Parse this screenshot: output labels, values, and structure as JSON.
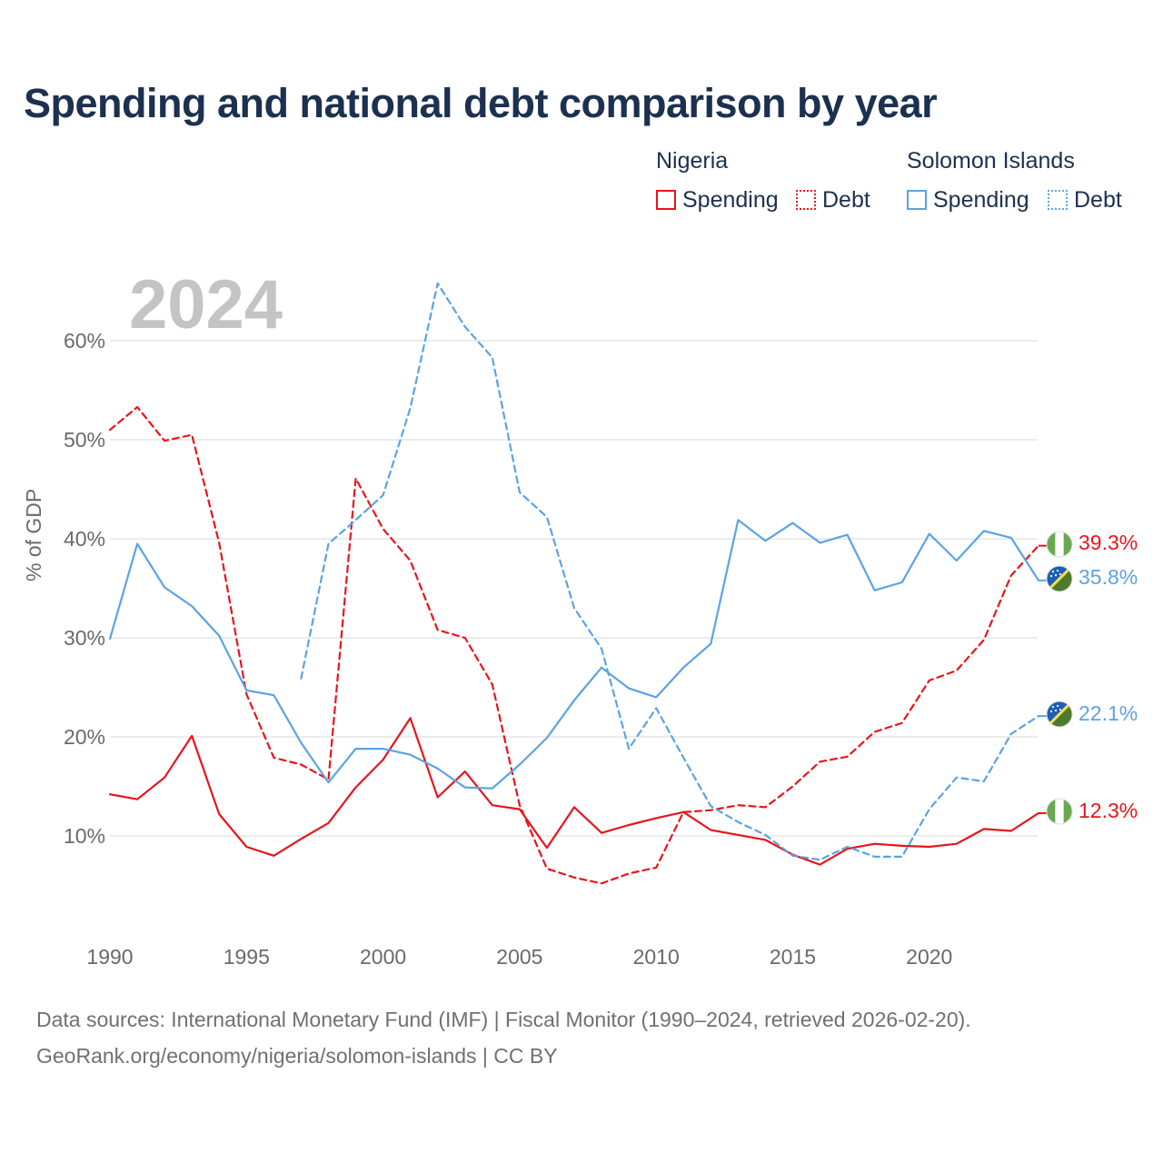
{
  "title": "Spending and national debt comparison by year",
  "legend": {
    "groups": [
      {
        "name": "Nigeria",
        "spending_label": "Spending",
        "debt_label": "Debt",
        "color": "#e8141b"
      },
      {
        "name": "Solomon Islands",
        "spending_label": "Spending",
        "debt_label": "Debt",
        "color": "#5ba3e4"
      }
    ]
  },
  "year_watermark": "2024",
  "footer": {
    "line1": "Data sources: International Monetary Fund (IMF) | Fiscal Monitor (1990–2024, retrieved 2026-02-20).",
    "line2": "GeoRank.org/economy/nigeria/solomon-islands | CC BY"
  },
  "end_labels": {
    "nigeria_debt": "39.3%",
    "solomon_spending": "35.8%",
    "solomon_debt": "22.1%",
    "nigeria_spending": "12.3%"
  },
  "flag_icons": {
    "nigeria": {
      "name": "nigeria-flag-icon",
      "colors": [
        "#6aa84f",
        "#ffffff"
      ]
    },
    "solomon": {
      "name": "solomon-islands-flag-icon",
      "colors": [
        "#1f5fb5",
        "#4d7a2f",
        "#f4e04d"
      ]
    }
  },
  "chart_data": {
    "type": "line",
    "title": "Spending and national debt comparison by year",
    "xlabel": "",
    "ylabel": "% of GDP",
    "xlim": [
      1990,
      2024
    ],
    "ylim": [
      0,
      65
    ],
    "yticks": [
      10,
      20,
      30,
      40,
      50,
      60
    ],
    "ytick_labels": [
      "10%",
      "20%",
      "30%",
      "40%",
      "50%",
      "60%"
    ],
    "xticks": [
      1990,
      1995,
      2000,
      2005,
      2010,
      2015,
      2020
    ],
    "xtick_labels": [
      "1990",
      "1995",
      "2000",
      "2005",
      "2010",
      "2015",
      "2020"
    ],
    "grid": "horizontal",
    "series": [
      {
        "name": "Nigeria Spending",
        "country": "Nigeria",
        "measure": "Spending",
        "style": "solid",
        "color": "#e8141b",
        "x": [
          1990,
          1991,
          1992,
          1993,
          1994,
          1995,
          1996,
          1997,
          1998,
          1999,
          2000,
          2001,
          2002,
          2003,
          2004,
          2005,
          2006,
          2007,
          2008,
          2009,
          2010,
          2011,
          2012,
          2013,
          2014,
          2015,
          2016,
          2017,
          2018,
          2019,
          2020,
          2021,
          2022,
          2023,
          2024
        ],
        "values": [
          14.2,
          13.7,
          15.9,
          20.1,
          12.2,
          8.9,
          8.0,
          9.7,
          11.3,
          14.9,
          17.7,
          21.9,
          13.9,
          16.5,
          13.1,
          12.7,
          8.8,
          12.9,
          10.3,
          11.1,
          11.8,
          12.4,
          10.6,
          10.1,
          9.6,
          8.1,
          7.1,
          8.7,
          9.2,
          9.0,
          8.9,
          9.2,
          10.7,
          10.5,
          12.3
        ]
      },
      {
        "name": "Nigeria Debt",
        "country": "Nigeria",
        "measure": "Debt",
        "style": "dashed",
        "color": "#e8141b",
        "x": [
          1990,
          1991,
          1992,
          1993,
          1994,
          1995,
          1996,
          1997,
          1998,
          1999,
          2000,
          2001,
          2002,
          2003,
          2004,
          2005,
          2006,
          2007,
          2008,
          2009,
          2010,
          2011,
          2012,
          2013,
          2014,
          2015,
          2016,
          2017,
          2018,
          2019,
          2020,
          2021,
          2022,
          2023,
          2024
        ],
        "values": [
          51.0,
          53.3,
          49.9,
          50.5,
          39.6,
          24.3,
          17.9,
          17.2,
          15.7,
          46.1,
          41.0,
          37.8,
          30.8,
          30.0,
          25.3,
          13.1,
          6.7,
          5.8,
          5.2,
          6.2,
          6.8,
          12.4,
          12.6,
          13.1,
          12.9,
          15.0,
          17.5,
          18.0,
          20.5,
          21.4,
          25.7,
          26.7,
          29.8,
          36.3,
          39.3
        ]
      },
      {
        "name": "Solomon Islands Spending",
        "country": "Solomon Islands",
        "measure": "Spending",
        "style": "solid",
        "color": "#5ba3e4",
        "x": [
          1990,
          1991,
          1992,
          1993,
          1994,
          1995,
          1996,
          1997,
          1998,
          1999,
          2000,
          2001,
          2002,
          2003,
          2004,
          2005,
          2006,
          2007,
          2008,
          2009,
          2010,
          2011,
          2012,
          2013,
          2014,
          2015,
          2016,
          2017,
          2018,
          2019,
          2020,
          2021,
          2022,
          2023,
          2024
        ],
        "values": [
          29.9,
          39.5,
          35.1,
          33.2,
          30.2,
          24.7,
          24.2,
          19.4,
          15.4,
          18.8,
          18.8,
          18.2,
          16.8,
          14.9,
          14.8,
          17.2,
          19.9,
          23.7,
          27.0,
          24.9,
          24.0,
          27.0,
          29.4,
          41.9,
          39.8,
          41.6,
          39.6,
          40.4,
          34.8,
          35.6,
          40.5,
          37.8,
          40.8,
          40.1,
          35.8
        ]
      },
      {
        "name": "Solomon Islands Debt",
        "country": "Solomon Islands",
        "measure": "Debt",
        "style": "dashed",
        "color": "#5ba3e4",
        "x": [
          1997,
          1998,
          1999,
          2000,
          2001,
          2002,
          2003,
          2004,
          2005,
          2006,
          2007,
          2008,
          2009,
          2010,
          2011,
          2012,
          2013,
          2014,
          2015,
          2016,
          2017,
          2018,
          2019,
          2020,
          2021,
          2022,
          2023,
          2024
        ],
        "values": [
          25.9,
          39.5,
          41.9,
          44.4,
          53.2,
          65.8,
          61.4,
          58.3,
          44.7,
          42.2,
          33.0,
          28.9,
          18.8,
          22.9,
          17.9,
          13.0,
          11.4,
          10.1,
          8.0,
          7.6,
          8.9,
          7.9,
          7.9,
          12.7,
          15.9,
          15.5,
          20.3,
          22.1
        ]
      }
    ]
  }
}
